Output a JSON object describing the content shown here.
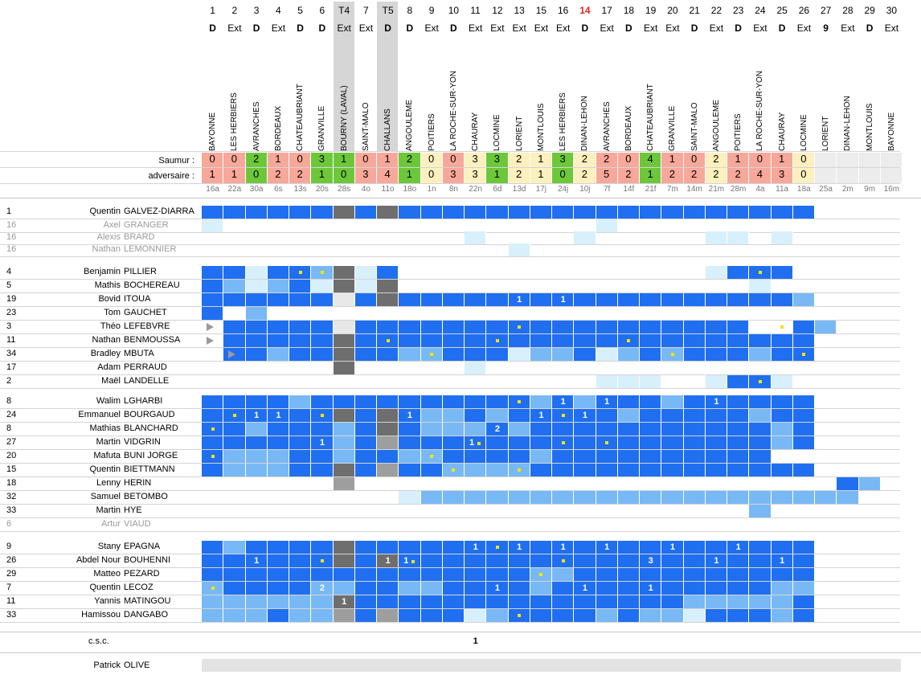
{
  "header": {
    "numbers": [
      "1",
      "2",
      "3",
      "4",
      "5",
      "6",
      "T4",
      "7",
      "T5",
      "8",
      "9",
      "10",
      "11",
      "12",
      "13",
      "15",
      "16",
      "14",
      "17",
      "18",
      "19",
      "20",
      "21",
      "22",
      "23",
      "24",
      "25",
      "26",
      "27",
      "28",
      "29",
      "30"
    ],
    "types": [
      "D",
      "Ext",
      "D",
      "Ext",
      "D",
      "D",
      "Ext",
      "Ext",
      "D",
      "D",
      "Ext",
      "D",
      "Ext",
      "Ext",
      "Ext",
      "Ext",
      "Ext",
      "D",
      "Ext",
      "D",
      "Ext",
      "Ext",
      "D",
      "Ext",
      "D",
      "Ext",
      "D",
      "Ext",
      "9",
      "Ext",
      "D",
      "Ext"
    ],
    "opponents": [
      "BAYONNE",
      "LES HERBIERS",
      "AVRANCHES",
      "BORDEAUX",
      "CHATEAUBRIANT",
      "GRANVILLE",
      "BOURNY (LAVAL)",
      "SAINT-MALO",
      "CHALLANS",
      "ANGOULEME",
      "POITIERS",
      "LA ROCHE-SUR-YON",
      "CHAURAY",
      "LOCMINE",
      "LORIENT",
      "MONTLOUIS",
      "LES HERBIERS",
      "DINAN-LEHON",
      "AVRANCHES",
      "BORDEAUX",
      "CHATEAUBRIANT",
      "GRANVILLE",
      "SAINT-MALO",
      "ANGOULEME",
      "POITIERS",
      "LA ROCHE-SUR-YON",
      "CHAURAY",
      "LOCMINE",
      "LORIENT",
      "DINAN-LEHON",
      "MONTLOUIS",
      "BAYONNE"
    ],
    "team_label": "Saumur :",
    "opp_label": "adversaire :",
    "team_scores": [
      "0",
      "0",
      "2",
      "1",
      "0",
      "3",
      "1",
      "0",
      "1",
      "2",
      "0",
      "0",
      "3",
      "3",
      "2",
      "1",
      "3",
      "2",
      "2",
      "0",
      "4",
      "1",
      "0",
      "2",
      "1",
      "0",
      "1",
      "0",
      "",
      "",
      "",
      ""
    ],
    "opp_scores": [
      "1",
      "1",
      "0",
      "2",
      "2",
      "1",
      "0",
      "3",
      "4",
      "1",
      "0",
      "3",
      "3",
      "1",
      "2",
      "1",
      "0",
      "2",
      "5",
      "2",
      "1",
      "2",
      "2",
      "2",
      "2",
      "4",
      "3",
      "0",
      "",
      "",
      "",
      ""
    ],
    "dates": [
      "16a",
      "22a",
      "30a",
      "6s",
      "13s",
      "20s",
      "28s",
      "4o",
      "11o",
      "18o",
      "1n",
      "8n",
      "22n",
      "6d",
      "13d",
      "17j",
      "24j",
      "10j",
      "7f",
      "14f",
      "21f",
      "7m",
      "14m",
      "21m",
      "28m",
      "4a",
      "11a",
      "18a",
      "25a",
      "2m",
      "9m",
      "16m"
    ]
  },
  "players": [
    {
      "num": "1",
      "first": "Quentin",
      "last": "GALVEZ-DIARRA",
      "dim": false
    },
    {
      "num": "16",
      "first": "Axel",
      "last": "GRANGER",
      "dim": true
    },
    {
      "num": "16",
      "first": "Alexis",
      "last": "BRARD",
      "dim": true
    },
    {
      "num": "16",
      "first": "Nathan",
      "last": "LEMONNIER",
      "dim": true
    },
    {
      "num": "4",
      "first": "Benjamin",
      "last": "PILLIER",
      "dim": false
    },
    {
      "num": "5",
      "first": "Mathis",
      "last": "BOCHEREAU",
      "dim": false
    },
    {
      "num": "19",
      "first": "Bovid",
      "last": "ITOUA",
      "dim": false
    },
    {
      "num": "23",
      "first": "Tom",
      "last": "GAUCHET",
      "dim": false
    },
    {
      "num": "3",
      "first": "Théo",
      "last": "LEFEBVRE",
      "dim": false
    },
    {
      "num": "11",
      "first": "Nathan",
      "last": "BENMOUSSA",
      "dim": false
    },
    {
      "num": "34",
      "first": "Bradley",
      "last": "MBUTA",
      "dim": false
    },
    {
      "num": "17",
      "first": "Adam",
      "last": "PERRAUD",
      "dim": false
    },
    {
      "num": "2",
      "first": "Maël",
      "last": "LANDELLE",
      "dim": false
    },
    {
      "num": "8",
      "first": "Walim",
      "last": "LGHARBI",
      "dim": false
    },
    {
      "num": "24",
      "first": "Emmanuel",
      "last": "BOURGAUD",
      "dim": false
    },
    {
      "num": "8",
      "first": "Mathias",
      "last": "BLANCHARD",
      "dim": false
    },
    {
      "num": "27",
      "first": "Martin",
      "last": "VIDGRIN",
      "dim": false
    },
    {
      "num": "20",
      "first": "Mafuta",
      "last": "BUNI JORGE",
      "dim": false
    },
    {
      "num": "15",
      "first": "Quentin",
      "last": "BIETTMANN",
      "dim": false
    },
    {
      "num": "18",
      "first": "Lenny",
      "last": "HERIN",
      "dim": false
    },
    {
      "num": "32",
      "first": "Samuel",
      "last": "BETOMBO",
      "dim": false
    },
    {
      "num": "33",
      "first": "Martin",
      "last": "HYE",
      "dim": false
    },
    {
      "num": "6",
      "first": "Artur",
      "last": "VIAUD",
      "dim": true
    },
    {
      "num": "9",
      "first": "Stany",
      "last": "EPAGNA",
      "dim": false
    },
    {
      "num": "26",
      "first": "Abdel Nour",
      "last": "BOUHENNI",
      "dim": false
    },
    {
      "num": "29",
      "first": "Matteo",
      "last": "PEZARD",
      "dim": false
    },
    {
      "num": "7",
      "first": "Quentin",
      "last": "LECOZ",
      "dim": false
    },
    {
      "num": "11",
      "first": "Yannis",
      "last": "MATINGOU",
      "dim": false
    },
    {
      "num": "33",
      "first": "Hamissou",
      "last": "DANGABO",
      "dim": false
    }
  ],
  "grid": [
    "BBBBBBGBDBBBBBBBBBBBBBBBBBBB....",
    "p.................p.............",
    "............p....p.....pp.p.....",
    "..............p.................",
    "BBpBBLGpB..............pBBB.....",
    "BLpLBpGpD................p......",
    "BBBBBBwBDBBBBBBBBBBBBBBBBBBL....",
    "B.L.............................",
    ".BBBBBwBBBBBBBBBBBBBBBBBB..BL...",
    ".BBBBBGBBBBBBBBBBBBBBBBBBBBB....",
    ".BBLBBGBBLLBBBpLLBpLBLBBBLBB....",
    "......G.....p...................",
    "..................ppp..pBBp.....",
    "BBBBLBBBBBBBBBBLBLBBBLBBBBBB....",
    "BBBBBBGBDBLLBLBBBBBLBBBBBLBB....",
    "BBLBBBLBDBLLLBLBBBBBBBBBBBLB....",
    "BBBBBBLBMBBBBBBBBBBBBBBBBBLB....",
    "BLLLBBLBBLLBBBBLBBBBBBBBBB......",
    "BLLLBBDBMBBLLLLBBBBBBBBBBBBB....",
    "......M......................BL.",
    ".........pLLLLLLLLLLLLLLLLLLLL..",
    ".........................L......",
    "................................",
    "BLBBBBDBBBBBBBBBBBBBBBBBBBBB....",
    "BBBBBBDBDBBBBBBBBBBBBBBBBBBB....",
    "BBBBBBBBBBBBBBBLLBBBBBBBBBBB....",
    "LBBBBLLBBLLBBBBLBBBBBBBBBBLL....",
    "LLLLLLDBBBBBBBBBBBBBBBLLLLLB....",
    "LLLBLLMBMBBBpLBBBBLBLLpBBBLB....",
    "................................"
  ],
  "csc_label": "c.s.c.",
  "csc_value": "1",
  "coach": {
    "first": "Patrick",
    "last": "OLIVE"
  },
  "colors": {
    "blue": "#1f6ff0",
    "light": "#78b9f5",
    "pale": "#d7f0fb",
    "grey": "#e8e8e8",
    "dark": "#6e6e6e",
    "mid": "#9e9e9e",
    "red": "#f7a89a",
    "green": "#6cc83a",
    "yellow": "#fdf0bf",
    "empty": "#ececec",
    "dot": "#f5e400"
  }
}
